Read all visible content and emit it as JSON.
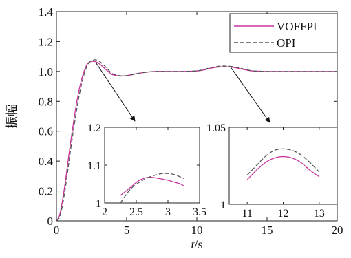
{
  "chart_data": {
    "type": "line",
    "title": "",
    "xlabel_italic": "t",
    "xlabel_unit": "/s",
    "ylabel": "振幅",
    "xlim": [
      0,
      20
    ],
    "ylim": [
      0,
      1.4
    ],
    "xticks": [
      "0",
      "5",
      "10",
      "15",
      "20"
    ],
    "yticks": [
      "0",
      "0.2",
      "0.4",
      "0.6",
      "0.8",
      "1.0",
      "1.2",
      "1.4"
    ],
    "grid": false,
    "legend_position": "top-right",
    "series": [
      {
        "name": "VOFFPI",
        "color": "#c8359e",
        "style": "solid",
        "x": [
          0,
          0.2,
          0.4,
          0.6,
          0.8,
          1.0,
          1.2,
          1.4,
          1.6,
          1.8,
          2.0,
          2.2,
          2.4,
          2.6,
          2.8,
          3.0,
          3.2,
          3.5,
          3.8,
          4.0,
          4.5,
          5.0,
          5.5,
          6.0,
          6.5,
          7.0,
          8.0,
          9.0,
          10.0,
          10.5,
          11.0,
          11.5,
          12.0,
          12.5,
          13.0,
          13.5,
          14.0,
          15.0,
          16.0,
          17.0,
          18.0,
          19.0,
          20.0
        ],
        "y": [
          0,
          0.03,
          0.12,
          0.24,
          0.38,
          0.52,
          0.65,
          0.77,
          0.87,
          0.95,
          1.01,
          1.05,
          1.065,
          1.068,
          1.065,
          1.055,
          1.04,
          1.015,
          0.99,
          0.978,
          0.97,
          0.972,
          0.982,
          0.99,
          0.996,
          1.0,
          1.0,
          1.0,
          1.003,
          1.01,
          1.022,
          1.029,
          1.031,
          1.029,
          1.02,
          1.01,
          1.003,
          1.0,
          1.0,
          1.0,
          1.0,
          1.0,
          1.0
        ]
      },
      {
        "name": "OPI",
        "color": "#555555",
        "style": "dashed",
        "x": [
          0,
          0.2,
          0.4,
          0.6,
          0.8,
          1.0,
          1.2,
          1.4,
          1.6,
          1.8,
          2.0,
          2.2,
          2.4,
          2.6,
          2.8,
          3.0,
          3.2,
          3.5,
          3.8,
          4.0,
          4.5,
          5.0,
          5.5,
          6.0,
          6.5,
          7.0,
          8.0,
          9.0,
          10.0,
          10.5,
          11.0,
          11.5,
          12.0,
          12.5,
          13.0,
          13.5,
          14.0,
          15.0,
          16.0,
          17.0,
          18.0,
          19.0,
          20.0
        ],
        "y": [
          0,
          0.02,
          0.09,
          0.2,
          0.33,
          0.47,
          0.6,
          0.72,
          0.83,
          0.92,
          0.99,
          1.04,
          1.065,
          1.075,
          1.078,
          1.072,
          1.058,
          1.03,
          1.0,
          0.985,
          0.972,
          0.972,
          0.98,
          0.99,
          0.996,
          1.0,
          1.0,
          1.0,
          1.004,
          1.013,
          1.026,
          1.034,
          1.036,
          1.033,
          1.024,
          1.013,
          1.004,
          1.0,
          1.0,
          1.0,
          1.0,
          1.0,
          1.0
        ]
      }
    ],
    "insets": [
      {
        "xlim": [
          2,
          3.5
        ],
        "ylim": [
          1,
          1.2
        ],
        "xticks": [
          "2",
          "2.5",
          "3",
          "3.5"
        ],
        "yticks": [
          "1",
          "1.1",
          "1.2"
        ],
        "series": [
          {
            "name": "VOFFPI",
            "x": [
              2.25,
              2.4,
              2.55,
              2.7,
              2.85,
              3.0,
              3.1,
              3.2,
              3.25
            ],
            "y": [
              1.02,
              1.04,
              1.06,
              1.068,
              1.065,
              1.06,
              1.055,
              1.05,
              1.045
            ]
          },
          {
            "name": "OPI",
            "x": [
              2.25,
              2.4,
              2.55,
              2.7,
              2.85,
              2.95,
              3.05,
              3.15,
              3.25
            ],
            "y": [
              1.0,
              1.035,
              1.055,
              1.068,
              1.076,
              1.078,
              1.077,
              1.072,
              1.065
            ]
          }
        ]
      },
      {
        "xlim": [
          10.5,
          13.5
        ],
        "ylim": [
          1,
          1.05
        ],
        "xticks": [
          "11",
          "12",
          "13"
        ],
        "yticks": [
          "1",
          "1.05"
        ],
        "series": [
          {
            "name": "VOFFPI",
            "x": [
              11,
              11.25,
              11.5,
              11.75,
              12,
              12.25,
              12.5,
              12.75,
              13
            ],
            "y": [
              1.016,
              1.022,
              1.027,
              1.03,
              1.031,
              1.03,
              1.027,
              1.022,
              1.018
            ]
          },
          {
            "name": "OPI",
            "x": [
              11,
              11.25,
              11.5,
              11.75,
              12,
              12.25,
              12.5,
              12.75,
              13
            ],
            "y": [
              1.019,
              1.025,
              1.031,
              1.035,
              1.036,
              1.035,
              1.032,
              1.027,
              1.021
            ]
          }
        ]
      }
    ]
  }
}
